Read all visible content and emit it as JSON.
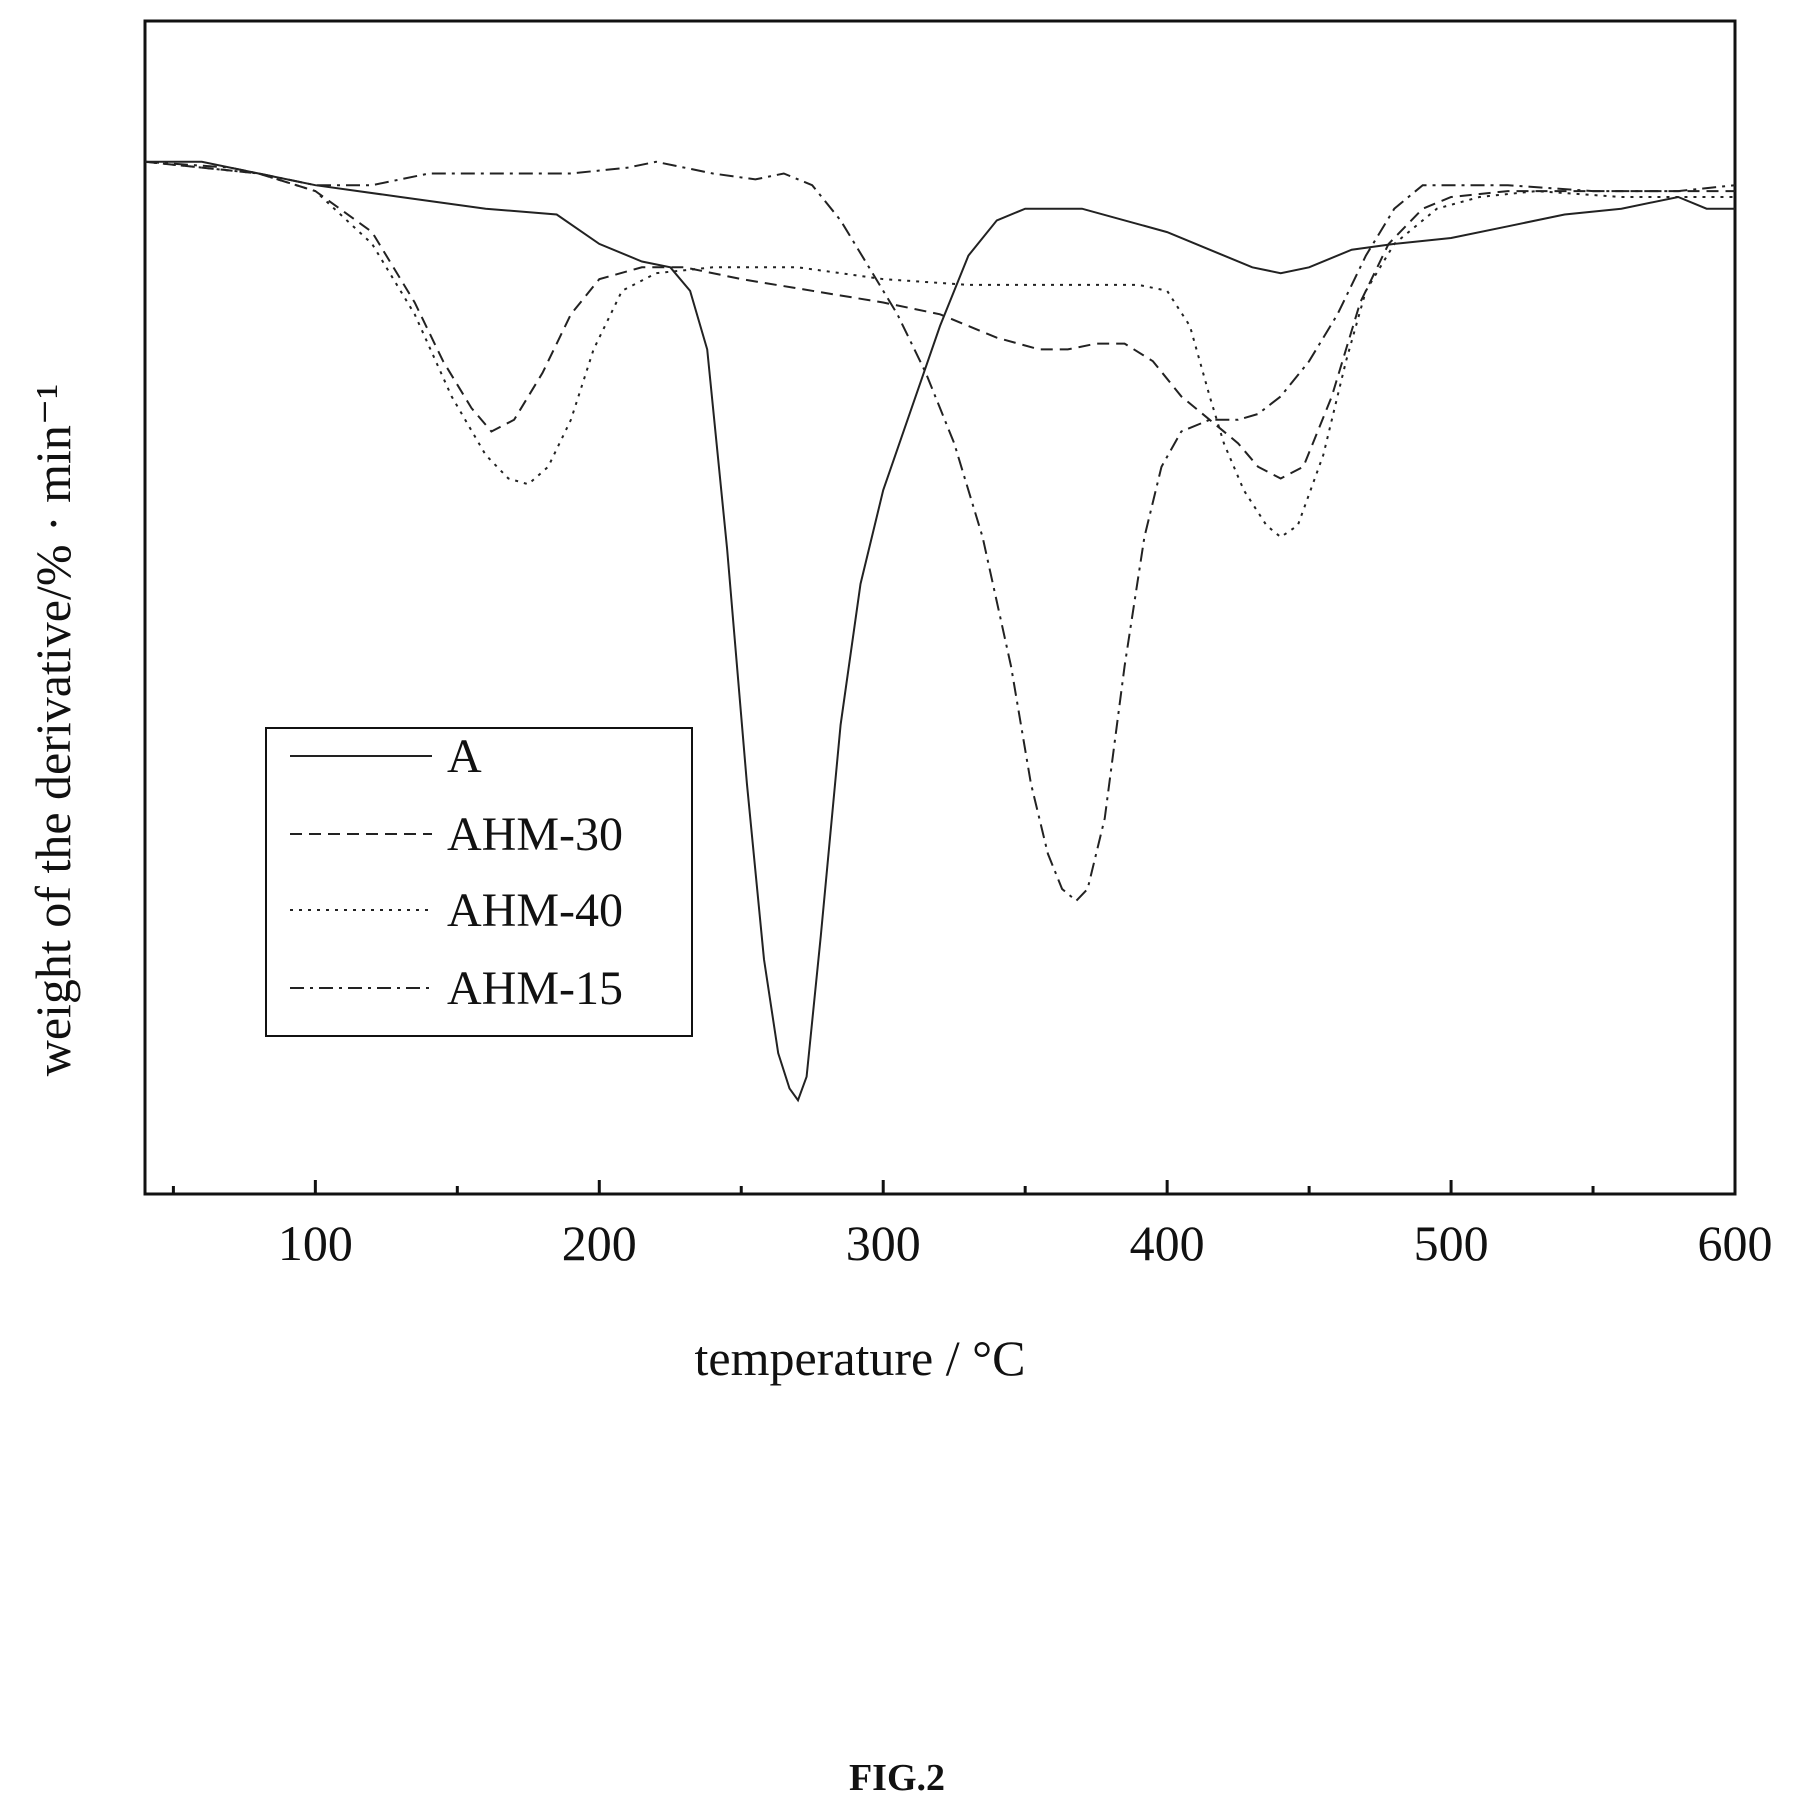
{
  "figure": {
    "caption": "FIG.2"
  },
  "chart_data": {
    "type": "line",
    "xlabel": "temperature / °C",
    "ylabel": "weight of the derivative/% · min⁻¹",
    "xlim": [
      40,
      600
    ],
    "x_ticks": [
      100,
      200,
      300,
      400,
      500,
      600
    ],
    "x_minor_ticks": [
      50,
      150,
      250,
      350,
      450,
      550
    ],
    "ylim": [
      0,
      100
    ],
    "y_tick_labels": "none",
    "grid": false,
    "legend_position": "center-left",
    "series": [
      {
        "name": "A",
        "dash": "solid",
        "points": [
          [
            40,
            88
          ],
          [
            60,
            88
          ],
          [
            80,
            87
          ],
          [
            100,
            86
          ],
          [
            130,
            85
          ],
          [
            160,
            84
          ],
          [
            185,
            83.5
          ],
          [
            200,
            81
          ],
          [
            215,
            79.5
          ],
          [
            225,
            79
          ],
          [
            232,
            77
          ],
          [
            238,
            72
          ],
          [
            245,
            55
          ],
          [
            252,
            35
          ],
          [
            258,
            20
          ],
          [
            263,
            12
          ],
          [
            267,
            9
          ],
          [
            270,
            8
          ],
          [
            273,
            10
          ],
          [
            278,
            22
          ],
          [
            285,
            40
          ],
          [
            292,
            52
          ],
          [
            300,
            60
          ],
          [
            310,
            67
          ],
          [
            320,
            74
          ],
          [
            330,
            80
          ],
          [
            340,
            83
          ],
          [
            350,
            84
          ],
          [
            370,
            84
          ],
          [
            400,
            82
          ],
          [
            420,
            80
          ],
          [
            430,
            79
          ],
          [
            440,
            78.5
          ],
          [
            450,
            79
          ],
          [
            465,
            80.5
          ],
          [
            480,
            81
          ],
          [
            500,
            81.5
          ],
          [
            520,
            82.5
          ],
          [
            540,
            83.5
          ],
          [
            560,
            84
          ],
          [
            580,
            85
          ],
          [
            590,
            84
          ],
          [
            600,
            84
          ]
        ]
      },
      {
        "name": "AHM-30",
        "dash": "dashed",
        "points": [
          [
            40,
            88
          ],
          [
            60,
            87.5
          ],
          [
            80,
            87
          ],
          [
            100,
            85.5
          ],
          [
            120,
            82
          ],
          [
            135,
            76
          ],
          [
            145,
            71
          ],
          [
            155,
            67
          ],
          [
            162,
            65
          ],
          [
            170,
            66
          ],
          [
            180,
            70
          ],
          [
            190,
            75
          ],
          [
            200,
            78
          ],
          [
            215,
            79
          ],
          [
            230,
            79
          ],
          [
            250,
            78
          ],
          [
            275,
            77
          ],
          [
            300,
            76
          ],
          [
            320,
            75
          ],
          [
            340,
            73
          ],
          [
            355,
            72
          ],
          [
            365,
            72
          ],
          [
            375,
            72.5
          ],
          [
            385,
            72.5
          ],
          [
            395,
            71
          ],
          [
            405,
            68
          ],
          [
            415,
            66
          ],
          [
            425,
            64
          ],
          [
            432,
            62
          ],
          [
            440,
            61
          ],
          [
            448,
            62
          ],
          [
            458,
            68
          ],
          [
            468,
            76
          ],
          [
            478,
            81
          ],
          [
            490,
            84
          ],
          [
            500,
            85
          ],
          [
            520,
            85.5
          ],
          [
            560,
            85.5
          ],
          [
            600,
            85.5
          ]
        ]
      },
      {
        "name": "AHM-40",
        "dash": "dotted",
        "points": [
          [
            40,
            88
          ],
          [
            60,
            87.5
          ],
          [
            80,
            87
          ],
          [
            100,
            85.5
          ],
          [
            120,
            81
          ],
          [
            135,
            75
          ],
          [
            148,
            68
          ],
          [
            160,
            63
          ],
          [
            168,
            61
          ],
          [
            175,
            60.5
          ],
          [
            182,
            62
          ],
          [
            190,
            66
          ],
          [
            198,
            72
          ],
          [
            208,
            77
          ],
          [
            220,
            78.5
          ],
          [
            240,
            79
          ],
          [
            270,
            79
          ],
          [
            300,
            78
          ],
          [
            330,
            77.5
          ],
          [
            360,
            77.5
          ],
          [
            390,
            77.5
          ],
          [
            400,
            77
          ],
          [
            408,
            74
          ],
          [
            415,
            68
          ],
          [
            420,
            64
          ],
          [
            427,
            60
          ],
          [
            435,
            57
          ],
          [
            440,
            56
          ],
          [
            446,
            57
          ],
          [
            455,
            63
          ],
          [
            463,
            71
          ],
          [
            470,
            77
          ],
          [
            480,
            81
          ],
          [
            495,
            84
          ],
          [
            510,
            85
          ],
          [
            530,
            85.5
          ],
          [
            560,
            85
          ],
          [
            600,
            85
          ]
        ]
      },
      {
        "name": "AHM-15",
        "dash": "dashdot",
        "points": [
          [
            40,
            88
          ],
          [
            70,
            87.5
          ],
          [
            100,
            86
          ],
          [
            120,
            86
          ],
          [
            140,
            87
          ],
          [
            160,
            87
          ],
          [
            190,
            87
          ],
          [
            210,
            87.5
          ],
          [
            220,
            88
          ],
          [
            240,
            87
          ],
          [
            255,
            86.5
          ],
          [
            265,
            87
          ],
          [
            275,
            86
          ],
          [
            285,
            83
          ],
          [
            295,
            79
          ],
          [
            305,
            75
          ],
          [
            315,
            70
          ],
          [
            325,
            64
          ],
          [
            335,
            56
          ],
          [
            345,
            45
          ],
          [
            352,
            35
          ],
          [
            358,
            29
          ],
          [
            363,
            26
          ],
          [
            368,
            25
          ],
          [
            372,
            26
          ],
          [
            378,
            32
          ],
          [
            385,
            45
          ],
          [
            392,
            56
          ],
          [
            398,
            62
          ],
          [
            405,
            65
          ],
          [
            415,
            66
          ],
          [
            425,
            66
          ],
          [
            432,
            66.5
          ],
          [
            440,
            68
          ],
          [
            450,
            71
          ],
          [
            460,
            75
          ],
          [
            470,
            80
          ],
          [
            480,
            84
          ],
          [
            490,
            86
          ],
          [
            500,
            86
          ],
          [
            520,
            86
          ],
          [
            550,
            85.5
          ],
          [
            580,
            85.5
          ],
          [
            600,
            86
          ]
        ]
      }
    ]
  }
}
